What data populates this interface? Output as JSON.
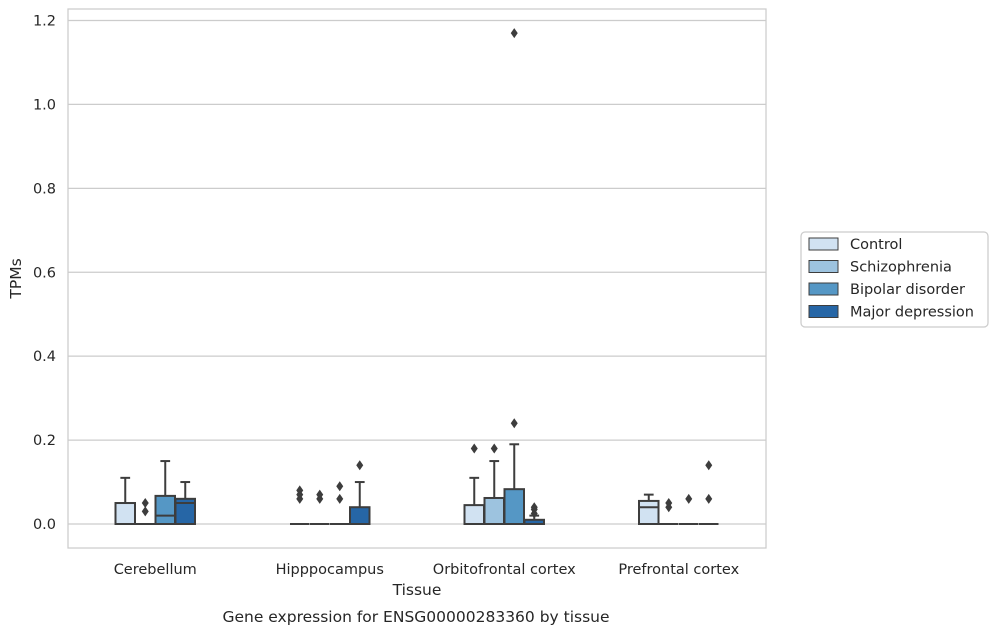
{
  "chart_data": {
    "type": "box",
    "title": "",
    "caption": "Gene expression for ENSG00000283360 by tissue",
    "xlabel": "Tissue",
    "ylabel": "TPMs",
    "ylim": [
      -0.057,
      1.23
    ],
    "yticks": [
      0.0,
      0.2,
      0.4,
      0.6,
      0.8,
      1.0,
      1.2
    ],
    "ytick_labels": [
      "0.0",
      "0.2",
      "0.4",
      "0.6",
      "0.8",
      "1.0",
      "1.2"
    ],
    "grid": "horizontal",
    "legend_position": "right",
    "categories": [
      "Cerebellum",
      "Hipppocampus",
      "Orbitofrontal cortex",
      "Prefrontal cortex"
    ],
    "series": [
      {
        "name": "Control",
        "color": "#d1e2f2",
        "boxes": [
          {
            "q1": 0.0,
            "median": 0.0,
            "q3": 0.05,
            "whislo": 0.0,
            "whishi": 0.11,
            "fliers": []
          },
          {
            "q1": 0.0,
            "median": 0.0,
            "q3": 0.0,
            "whislo": 0.0,
            "whishi": 0.0,
            "fliers": [
              0.06,
              0.07,
              0.08
            ]
          },
          {
            "q1": 0.0,
            "median": 0.0,
            "q3": 0.045,
            "whislo": 0.0,
            "whishi": 0.11,
            "fliers": [
              0.18
            ]
          },
          {
            "q1": 0.0,
            "median": 0.04,
            "q3": 0.055,
            "whislo": 0.0,
            "whishi": 0.07,
            "fliers": []
          }
        ]
      },
      {
        "name": "Schizophrenia",
        "color": "#9dc3df",
        "boxes": [
          {
            "q1": 0.0,
            "median": 0.0,
            "q3": 0.0,
            "whislo": 0.0,
            "whishi": 0.0,
            "fliers": [
              0.03,
              0.05
            ]
          },
          {
            "q1": 0.0,
            "median": 0.0,
            "q3": 0.0,
            "whislo": 0.0,
            "whishi": 0.0,
            "fliers": [
              0.06,
              0.07
            ]
          },
          {
            "q1": 0.0,
            "median": 0.0,
            "q3": 0.062,
            "whislo": 0.0,
            "whishi": 0.15,
            "fliers": [
              0.18
            ]
          },
          {
            "q1": 0.0,
            "median": 0.0,
            "q3": 0.0,
            "whislo": 0.0,
            "whishi": 0.0,
            "fliers": [
              0.04,
              0.05
            ]
          }
        ]
      },
      {
        "name": "Bipolar disorder",
        "color": "#5597c5",
        "boxes": [
          {
            "q1": 0.0,
            "median": 0.02,
            "q3": 0.067,
            "whislo": 0.0,
            "whishi": 0.15,
            "fliers": []
          },
          {
            "q1": 0.0,
            "median": 0.0,
            "q3": 0.0,
            "whislo": 0.0,
            "whishi": 0.0,
            "fliers": [
              0.06,
              0.09
            ]
          },
          {
            "q1": 0.0,
            "median": 0.0,
            "q3": 0.083,
            "whislo": 0.0,
            "whishi": 0.19,
            "fliers": [
              0.24,
              1.17
            ]
          },
          {
            "q1": 0.0,
            "median": 0.0,
            "q3": 0.0,
            "whislo": 0.0,
            "whishi": 0.0,
            "fliers": [
              0.06
            ]
          }
        ]
      },
      {
        "name": "Major depression",
        "color": "#2666a6",
        "boxes": [
          {
            "q1": 0.0,
            "median": 0.05,
            "q3": 0.06,
            "whislo": 0.0,
            "whishi": 0.1,
            "fliers": []
          },
          {
            "q1": 0.0,
            "median": 0.0,
            "q3": 0.04,
            "whislo": 0.0,
            "whishi": 0.1,
            "fliers": [
              0.14
            ]
          },
          {
            "q1": 0.0,
            "median": 0.0,
            "q3": 0.01,
            "whislo": 0.0,
            "whishi": 0.02,
            "fliers": [
              0.025,
              0.035,
              0.04
            ]
          },
          {
            "q1": 0.0,
            "median": 0.0,
            "q3": 0.0,
            "whislo": 0.0,
            "whishi": 0.0,
            "fliers": [
              0.06,
              0.14
            ]
          }
        ]
      }
    ]
  }
}
